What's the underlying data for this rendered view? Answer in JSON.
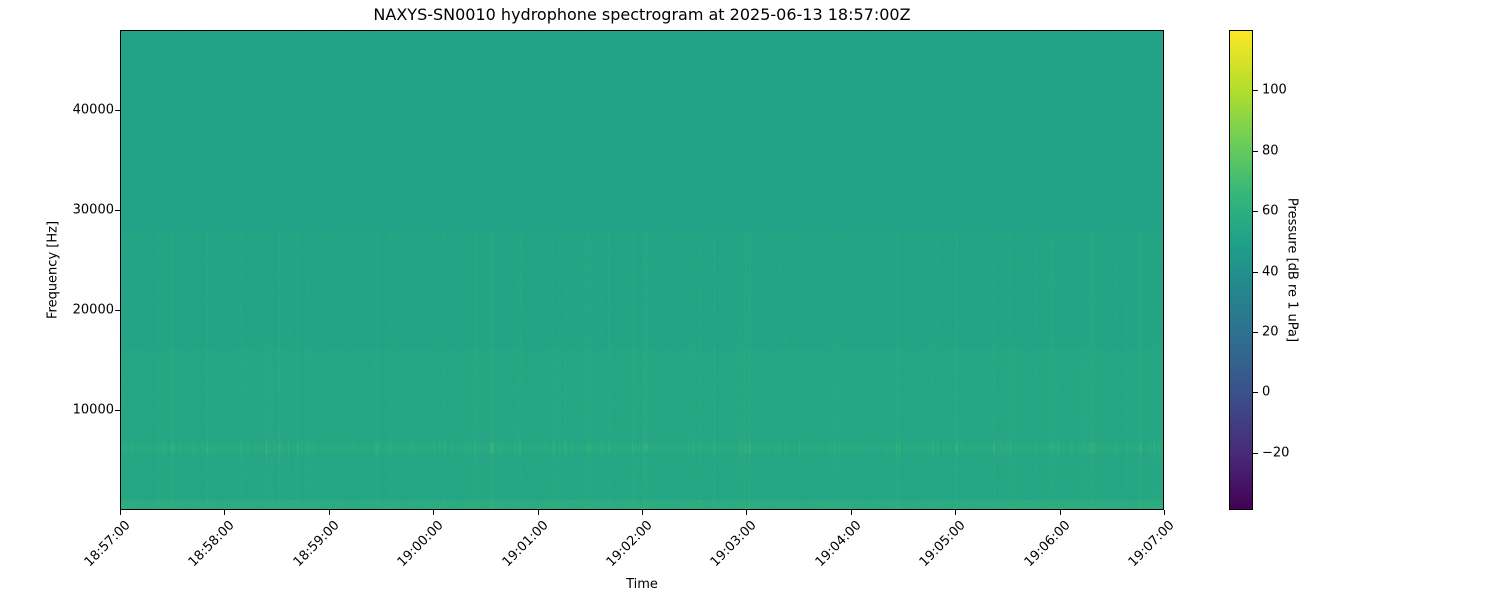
{
  "chart_data": {
    "type": "heatmap",
    "title": "NAXYS-SN0010 hydrophone spectrogram at 2025-06-13 18:57:00Z",
    "xlabel": "Time",
    "ylabel": "Frequency [Hz]",
    "xlim": [
      "18:57:00",
      "19:07:00"
    ],
    "ylim": [
      0,
      48000
    ],
    "x_ticks": [
      "18:57:00",
      "18:58:00",
      "18:59:00",
      "19:00:00",
      "19:01:00",
      "19:02:00",
      "19:03:00",
      "19:04:00",
      "19:05:00",
      "19:06:00",
      "19:07:00"
    ],
    "y_ticks": [
      10000,
      20000,
      30000,
      40000
    ],
    "y_tick_labels": [
      "10000",
      "20000",
      "30000",
      "40000"
    ],
    "colormap": "viridis",
    "colorbar": {
      "label": "Pressure [dB re 1 uPa]",
      "range": [
        -39,
        120
      ],
      "ticks": [
        -20,
        0,
        20,
        40,
        60,
        80,
        100
      ],
      "tick_labels": [
        "−20",
        "0",
        "20",
        "40",
        "60",
        "80",
        "100"
      ]
    },
    "typical_level_db": 52,
    "features": [
      {
        "description_level_db": 60,
        "frequency_hz": 6000
      },
      {
        "description_level_db": 56,
        "frequency_range_hz": [
          8000,
          16000
        ]
      }
    ]
  }
}
